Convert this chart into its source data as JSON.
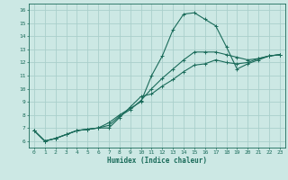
{
  "title": "",
  "xlabel": "Humidex (Indice chaleur)",
  "ylabel": "",
  "background_color": "#cce8e4",
  "grid_color": "#aacfcb",
  "line_color": "#1a6b5a",
  "xlim": [
    -0.5,
    23.5
  ],
  "ylim": [
    5.5,
    16.5
  ],
  "xticks": [
    0,
    1,
    2,
    3,
    4,
    5,
    6,
    7,
    8,
    9,
    10,
    11,
    12,
    13,
    14,
    15,
    16,
    17,
    18,
    19,
    20,
    21,
    22,
    23
  ],
  "yticks": [
    6,
    7,
    8,
    9,
    10,
    11,
    12,
    13,
    14,
    15,
    16
  ],
  "series1_x": [
    0,
    1,
    2,
    3,
    4,
    5,
    6,
    7,
    8,
    9,
    10,
    11,
    12,
    13,
    14,
    15,
    16,
    17,
    18,
    19,
    20,
    21,
    22,
    23
  ],
  "series1_y": [
    6.8,
    6.0,
    6.2,
    6.5,
    6.8,
    6.9,
    7.0,
    7.4,
    8.0,
    8.5,
    9.0,
    11.0,
    12.5,
    14.5,
    15.7,
    15.8,
    15.3,
    14.8,
    13.2,
    11.5,
    11.9,
    12.2,
    12.5,
    12.6
  ],
  "series2_x": [
    0,
    1,
    2,
    3,
    4,
    5,
    6,
    7,
    8,
    9,
    10,
    11,
    12,
    13,
    14,
    15,
    16,
    17,
    18,
    19,
    20,
    21,
    22,
    23
  ],
  "series2_y": [
    6.8,
    6.0,
    6.2,
    6.5,
    6.8,
    6.9,
    7.0,
    7.0,
    7.8,
    8.6,
    9.4,
    9.6,
    10.2,
    10.7,
    11.3,
    11.8,
    11.9,
    12.2,
    12.0,
    11.9,
    12.0,
    12.3,
    12.5,
    12.6
  ],
  "series3_x": [
    0,
    1,
    2,
    3,
    4,
    5,
    6,
    7,
    8,
    9,
    10,
    11,
    12,
    13,
    14,
    15,
    16,
    17,
    18,
    19,
    20,
    21,
    22,
    23
  ],
  "series3_y": [
    6.8,
    6.0,
    6.2,
    6.5,
    6.8,
    6.9,
    7.0,
    7.2,
    7.9,
    8.4,
    9.1,
    10.0,
    10.8,
    11.5,
    12.2,
    12.8,
    12.8,
    12.8,
    12.6,
    12.4,
    12.2,
    12.3,
    12.5,
    12.6
  ],
  "xlabel_fontsize": 5.5,
  "tick_fontsize": 4.5,
  "linewidth": 0.8,
  "markersize": 2.5
}
